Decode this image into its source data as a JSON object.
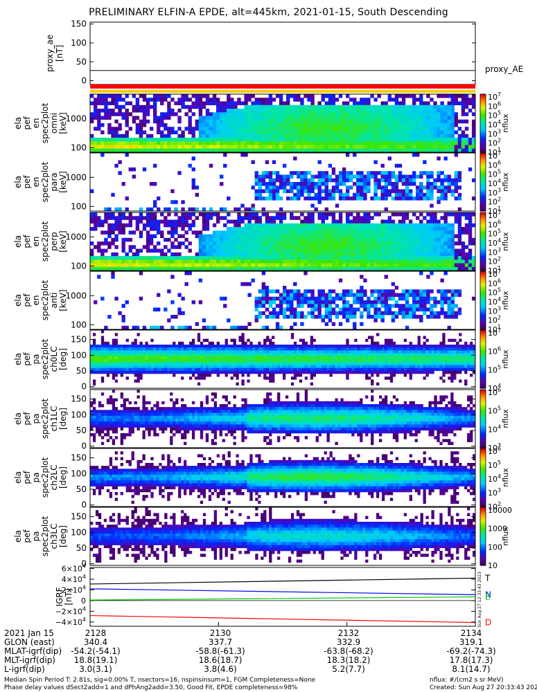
{
  "title": "PRELIMINARY ELFIN-A EPDE, alt=445km, 2021-01-15, South Descending",
  "chart_data": [
    {
      "type": "line",
      "ylabel_lines": [
        "proxy_ae",
        "[nT]"
      ],
      "yticks": [
        "150",
        "100",
        "50",
        "0"
      ],
      "ylim": [
        -10,
        155
      ],
      "series": [
        {
          "name": "proxy_AE",
          "values": [
            27,
            27
          ]
        }
      ]
    },
    {
      "type": "heatmap",
      "ylabel_lines": [
        "ela",
        "pef",
        "en",
        "spec2plot",
        "omni",
        "[keV]"
      ],
      "yticks": [
        "1000",
        "100"
      ],
      "cbar_ticks": [
        "10^7",
        "10^6",
        "10^5",
        "10^4",
        "10^3",
        "10^2",
        "10^1"
      ],
      "cbar_label": "nflux"
    },
    {
      "type": "heatmap",
      "ylabel_lines": [
        "ela",
        "pef",
        "en",
        "spec2plot",
        "para",
        "[keV]"
      ],
      "yticks": [
        "1000",
        "100"
      ],
      "cbar_ticks": [
        "10^7",
        "10^6",
        "10^5",
        "10^4",
        "10^3",
        "10^2",
        "10^1"
      ],
      "cbar_label": "nflux"
    },
    {
      "type": "heatmap",
      "ylabel_lines": [
        "ela",
        "pef",
        "en",
        "spec2plot",
        "perp",
        "[keV]"
      ],
      "yticks": [
        "1000",
        "100"
      ],
      "cbar_ticks": [
        "10^7",
        "10^6",
        "10^5",
        "10^4",
        "10^3",
        "10^2",
        "10^1"
      ],
      "cbar_label": "nflux"
    },
    {
      "type": "heatmap",
      "ylabel_lines": [
        "ela",
        "pef",
        "en",
        "spec2plot",
        "anti",
        "[keV]"
      ],
      "yticks": [
        "1000",
        "100"
      ],
      "cbar_ticks": [
        "10^7",
        "10^6",
        "10^5",
        "10^4",
        "10^3",
        "10^2",
        "10^1"
      ],
      "cbar_label": "nflux"
    },
    {
      "type": "heatmap",
      "ylabel_lines": [
        "ela",
        "pef",
        "pa",
        "spec2plot",
        "ch0LC",
        "[deg]"
      ],
      "yticks": [
        "150",
        "100",
        "50",
        "0"
      ],
      "cbar_ticks": [
        "10^7",
        "10^6",
        "10^5",
        "10^4"
      ],
      "cbar_label": "nflux"
    },
    {
      "type": "heatmap",
      "ylabel_lines": [
        "ela",
        "pef",
        "pa",
        "spec2plot",
        "ch1LC",
        "[deg]"
      ],
      "yticks": [
        "150",
        "100",
        "50",
        "0"
      ],
      "cbar_ticks": [
        "10^6",
        "10^5",
        "10^4",
        "10^3"
      ],
      "cbar_label": "nflux"
    },
    {
      "type": "heatmap",
      "ylabel_lines": [
        "ela",
        "pef",
        "pa",
        "spec2plot",
        "ch2LC",
        "[deg]"
      ],
      "yticks": [
        "150",
        "100",
        "50",
        "0"
      ],
      "cbar_ticks": [
        "10^6",
        "10^5",
        "10^4",
        "10^3",
        "10^2"
      ],
      "cbar_label": "nflux"
    },
    {
      "type": "heatmap",
      "ylabel_lines": [
        "ela",
        "pef",
        "pa",
        "spec2plot",
        "ch3LC",
        "[deg]"
      ],
      "yticks": [
        "150",
        "100",
        "50",
        "0"
      ],
      "cbar_ticks": [
        "10000",
        "1000",
        "100",
        "10"
      ],
      "cbar_label": "nflux"
    },
    {
      "type": "line",
      "ylabel_lines": [
        "IGRF",
        "[nT]"
      ],
      "yticks": [
        "6×10^4",
        "4×10^4",
        "2×10^4",
        "0",
        "−2×10^4",
        "−4×10^4"
      ],
      "ylim": [
        -48000,
        62000
      ],
      "side_text": "Sun Aug 27 12:33:43 2023",
      "series": [
        {
          "name": "T",
          "color": "#000000",
          "values": [
            31000,
            42000
          ]
        },
        {
          "name": "N",
          "color": "#0000ff",
          "values": [
            22000,
            11000
          ]
        },
        {
          "name": "E",
          "color": "#00cc00",
          "values": [
            1000,
            7000
          ]
        },
        {
          "name": "D",
          "color": "#ff0000",
          "values": [
            -28000,
            -41000
          ]
        }
      ]
    }
  ],
  "footer": {
    "rows": [
      {
        "label": "2021 Jan 15",
        "values": [
          "2128",
          "2130",
          "2132",
          "2134"
        ]
      },
      {
        "label": "GLON (east)",
        "values": [
          "340.4",
          "337.7",
          "332.9",
          "319.1"
        ]
      },
      {
        "label": "MLAT-igrf(dip)",
        "values": [
          "-54.2(-54.1)",
          "-58.8(-61.3)",
          "-63.8(-68.2)",
          "-69.2(-74.3)"
        ]
      },
      {
        "label": "MLT-igrf(dip)",
        "values": [
          "18.8(19.1)",
          "18.6(18.7)",
          "18.3(18.2)",
          "17.8(17.3)"
        ]
      },
      {
        "label": "L-igrf(dip)",
        "values": [
          "3.0(3.1)",
          "3.8(4.6)",
          "5.2(7.7)",
          "8.1(14.7)"
        ]
      }
    ],
    "note1": "Median Spin Period T: 2.81s, sig=0.00% T, nsectors=16, nspinsinsum=1, FGM Completeness=None",
    "note2": "Phase delay values dSect2add=1 and dPhAng2add=3.50, Good Fit, EPDE completeness=98%",
    "units": "nflux: #/(cm2 s sr MeV)",
    "created": "Created: Sun Aug 27 20:33:43 2023"
  }
}
